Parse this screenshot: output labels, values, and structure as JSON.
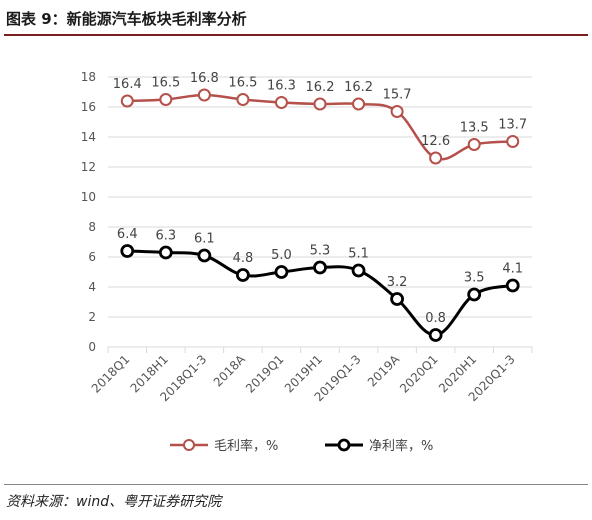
{
  "header": {
    "title": "图表 9：新能源汽车板块毛利率分析"
  },
  "footer": {
    "source": "资料来源：wind、粤开证券研究院"
  },
  "colors": {
    "gross": "#b5504b",
    "net": "#000000",
    "grid": "#d9d9d9",
    "rule": "#7a1f1f"
  },
  "chart_data": {
    "type": "line",
    "title": "",
    "xlabel": "",
    "ylabel": "",
    "categories": [
      "2018Q1",
      "2018H1",
      "2018Q1-3",
      "2018A",
      "2019Q1",
      "2019H1",
      "2019Q1-3",
      "2019A",
      "2020Q1",
      "2020H1",
      "2020Q1-3"
    ],
    "ylim": [
      0,
      18
    ],
    "yticks": [
      0,
      2,
      4,
      6,
      8,
      10,
      12,
      14,
      16,
      18
    ],
    "grid": true,
    "legend_position": "bottom",
    "series": [
      {
        "name": "毛利率，%",
        "color": "#b5504b",
        "values": [
          16.4,
          16.5,
          16.8,
          16.5,
          16.3,
          16.2,
          16.2,
          15.7,
          12.6,
          13.5,
          13.7
        ]
      },
      {
        "name": "净利率，%",
        "color": "#000000",
        "values": [
          6.4,
          6.3,
          6.1,
          4.8,
          5.0,
          5.3,
          5.1,
          3.2,
          0.8,
          3.5,
          4.1
        ]
      }
    ]
  }
}
